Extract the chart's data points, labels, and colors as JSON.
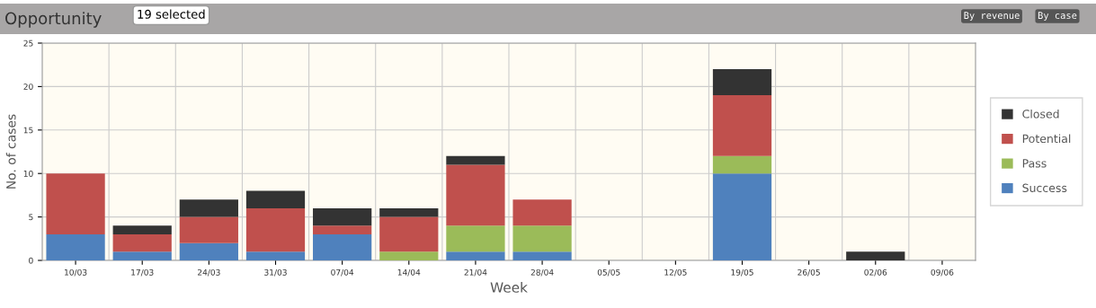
{
  "chart_data": {
    "type": "bar",
    "title": "Opportunity",
    "xlabel": "Week",
    "ylabel": "No. of cases",
    "annotations": [
      "19 selected",
      "By revenue",
      "By case"
    ],
    "categories": [
      "10/03",
      "17/03",
      "24/03",
      "31/03",
      "07/04",
      "14/04",
      "21/04",
      "28/04",
      "05/05",
      "12/05",
      "19/05",
      "26/05",
      "02/06",
      "09/06"
    ],
    "series": [
      {
        "name": "Success",
        "color": "#4f81bd",
        "values": [
          3,
          1,
          2,
          1,
          3,
          0,
          1,
          1,
          0,
          0,
          10,
          0,
          0,
          0
        ]
      },
      {
        "name": "Pass",
        "color": "#9bbb59",
        "values": [
          0,
          0,
          0,
          0,
          0,
          1,
          3,
          3,
          0,
          0,
          2,
          0,
          0,
          0
        ]
      },
      {
        "name": "Potential",
        "color": "#c0504d",
        "values": [
          7,
          2,
          3,
          5,
          1,
          4,
          7,
          3,
          0,
          0,
          7,
          0,
          0,
          0
        ]
      },
      {
        "name": "Closed",
        "color": "#333333",
        "values": [
          0,
          1,
          2,
          2,
          2,
          1,
          1,
          0,
          0,
          0,
          3,
          0,
          1,
          0
        ]
      }
    ],
    "stacked": true,
    "ylim": [
      0,
      25
    ],
    "yticks": [
      0,
      5,
      10,
      15,
      20,
      25
    ],
    "grid": true,
    "legend": "right"
  }
}
